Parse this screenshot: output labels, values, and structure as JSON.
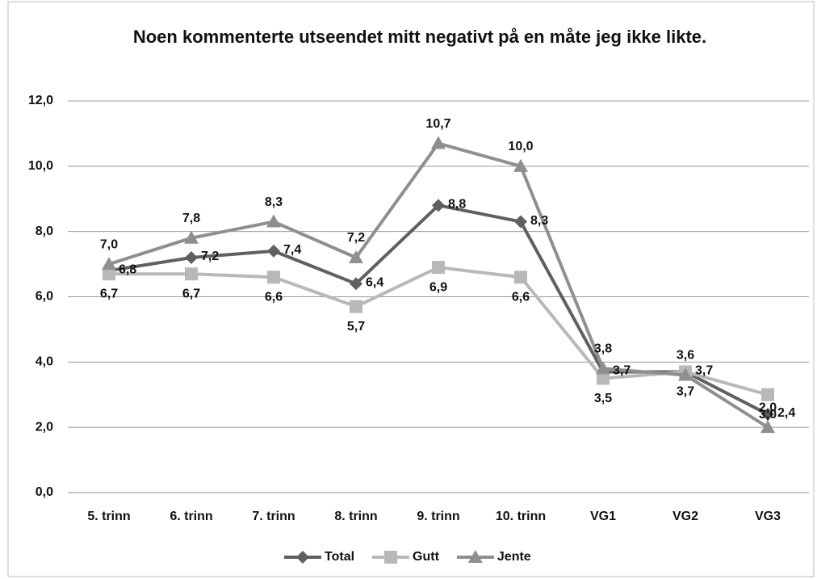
{
  "chart_data": {
    "type": "line",
    "title": "Noen kommenterte utseendet mitt negativt på en måte jeg ikke likte.",
    "categories": [
      "5. trinn",
      "6. trinn",
      "7. trinn",
      "8. trinn",
      "9. trinn",
      "10. trinn",
      "VG1",
      "VG2",
      "VG3"
    ],
    "series": [
      {
        "name": "Total",
        "color": "#606060",
        "marker": "diamond",
        "values": [
          6.8,
          7.2,
          7.4,
          6.4,
          8.8,
          8.3,
          3.7,
          3.7,
          2.4
        ],
        "value_labels": [
          "6,8",
          "7,2",
          "7,4",
          "6,4",
          "8,8",
          "8,3",
          "3,7",
          "3,7",
          "2,4"
        ]
      },
      {
        "name": "Gutt",
        "color": "#b8b8b8",
        "marker": "square",
        "values": [
          6.7,
          6.7,
          6.6,
          5.7,
          6.9,
          6.6,
          3.5,
          3.7,
          3.0
        ],
        "value_labels": [
          "6,7",
          "6,7",
          "6,6",
          "5,7",
          "6,9",
          "6,6",
          "3,5",
          "3,7",
          "3,0"
        ]
      },
      {
        "name": "Jente",
        "color": "#8f8f8f",
        "marker": "triangle",
        "values": [
          7.0,
          7.8,
          8.3,
          7.2,
          10.7,
          10.0,
          3.8,
          3.6,
          2.0
        ],
        "value_labels": [
          "7,0",
          "7,8",
          "8,3",
          "7,2",
          "10,7",
          "10,0",
          "3,8",
          "3,6",
          "2,0"
        ]
      }
    ],
    "ylim": [
      0,
      12
    ],
    "yticks": [
      {
        "value": 0,
        "label": "0,0"
      },
      {
        "value": 2,
        "label": "2,0"
      },
      {
        "value": 4,
        "label": "4,0"
      },
      {
        "value": 6,
        "label": "6,0"
      },
      {
        "value": 8,
        "label": "8,0"
      },
      {
        "value": 10,
        "label": "10,0"
      },
      {
        "value": 12,
        "label": "12,0"
      }
    ],
    "grid": true,
    "legend": "bottom"
  }
}
